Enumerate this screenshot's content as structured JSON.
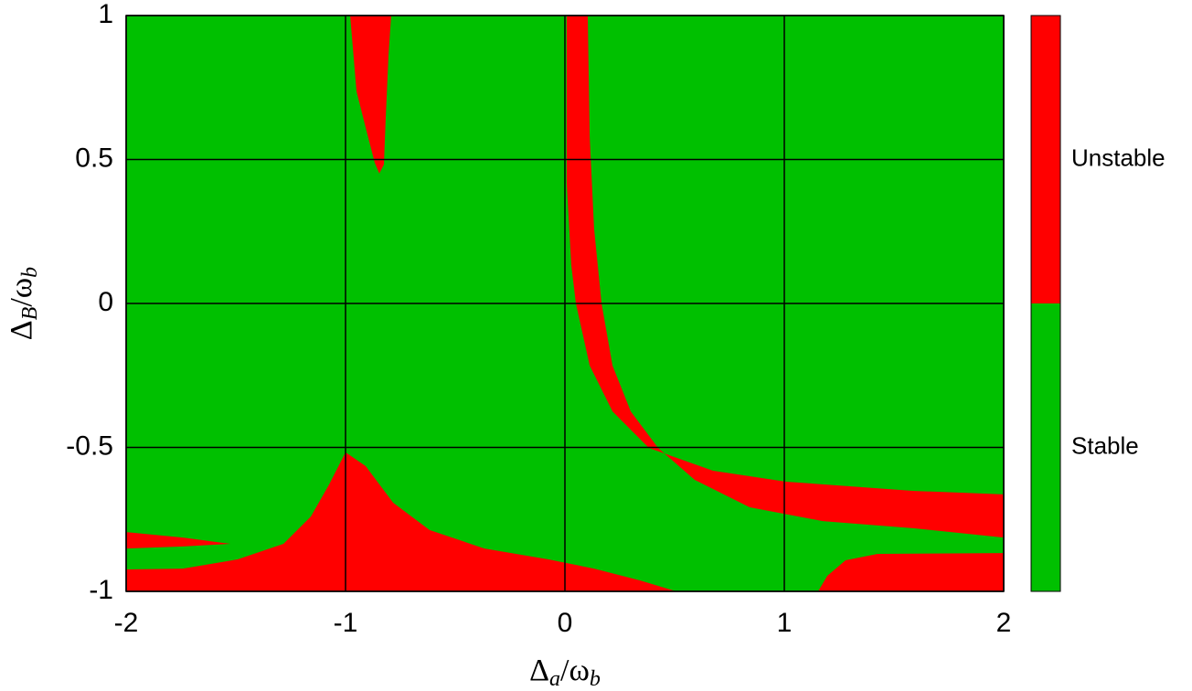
{
  "chart_data": {
    "type": "region",
    "xlabel": [
      "Δ",
      "a",
      "/ω",
      "b"
    ],
    "ylabel": [
      "Δ",
      "B",
      "/ω",
      "b"
    ],
    "xlim": [
      -2,
      2
    ],
    "xticks": [
      -2,
      -1,
      0,
      1,
      2
    ],
    "ylim": [
      -1,
      1
    ],
    "yticks": [
      -1,
      -0.5,
      0,
      0.5,
      1
    ],
    "grid": true,
    "series": [
      {
        "name": "Stable",
        "color": "#00c000"
      },
      {
        "name": "Unstable",
        "color": "#ff0000",
        "regions": [
          {
            "x": [
              -0.979,
              -0.95,
              -0.908,
              -0.867,
              -0.846,
              -0.825,
              -0.817,
              -0.804,
              -0.792
            ],
            "y": [
              1,
              0.737,
              0.61,
              0.489,
              0.451,
              0.483,
              0.641,
              0.863,
              1
            ]
          },
          {
            "x": [
              0.008,
              0.008,
              0.029,
              0.05,
              0.113,
              0.217,
              0.383,
              0.675,
              1.008,
              1.592,
              2,
              2,
              1.592,
              1.175,
              0.842,
              0.592,
              0.425,
              0.3,
              0.217,
              0.167,
              0.133,
              0.113,
              0.104
            ],
            "y": [
              1,
              0.419,
              0.133,
              0,
              -0.216,
              -0.375,
              -0.502,
              -0.581,
              -0.619,
              -0.651,
              -0.663,
              -0.813,
              -0.781,
              -0.756,
              -0.708,
              -0.613,
              -0.502,
              -0.375,
              -0.216,
              0,
              0.26,
              0.578,
              1
            ]
          },
          {
            "x": [
              -2,
              -2,
              -1.742,
              -1.492,
              -1.283,
              -1.158,
              -1.075,
              -1,
              -0.908,
              -0.783,
              -0.617,
              -0.367,
              -0.075,
              0.133,
              0.342,
              0.508
            ],
            "y": [
              -1,
              -0.924,
              -0.921,
              -0.889,
              -0.835,
              -0.74,
              -0.629,
              -0.517,
              -0.565,
              -0.692,
              -0.787,
              -0.851,
              -0.889,
              -0.921,
              -0.962,
              -1
            ]
          },
          {
            "x": [
              1.154,
              1.196,
              1.279,
              1.425,
              2,
              2
            ],
            "y": [
              -1,
              -0.946,
              -0.892,
              -0.87,
              -0.867,
              -1
            ]
          },
          {
            "x": [
              -2,
              -1.742,
              -1.525,
              -1.742,
              -2
            ],
            "y": [
              -0.794,
              -0.813,
              -0.835,
              -0.844,
              -0.851
            ]
          }
        ]
      }
    ]
  }
}
